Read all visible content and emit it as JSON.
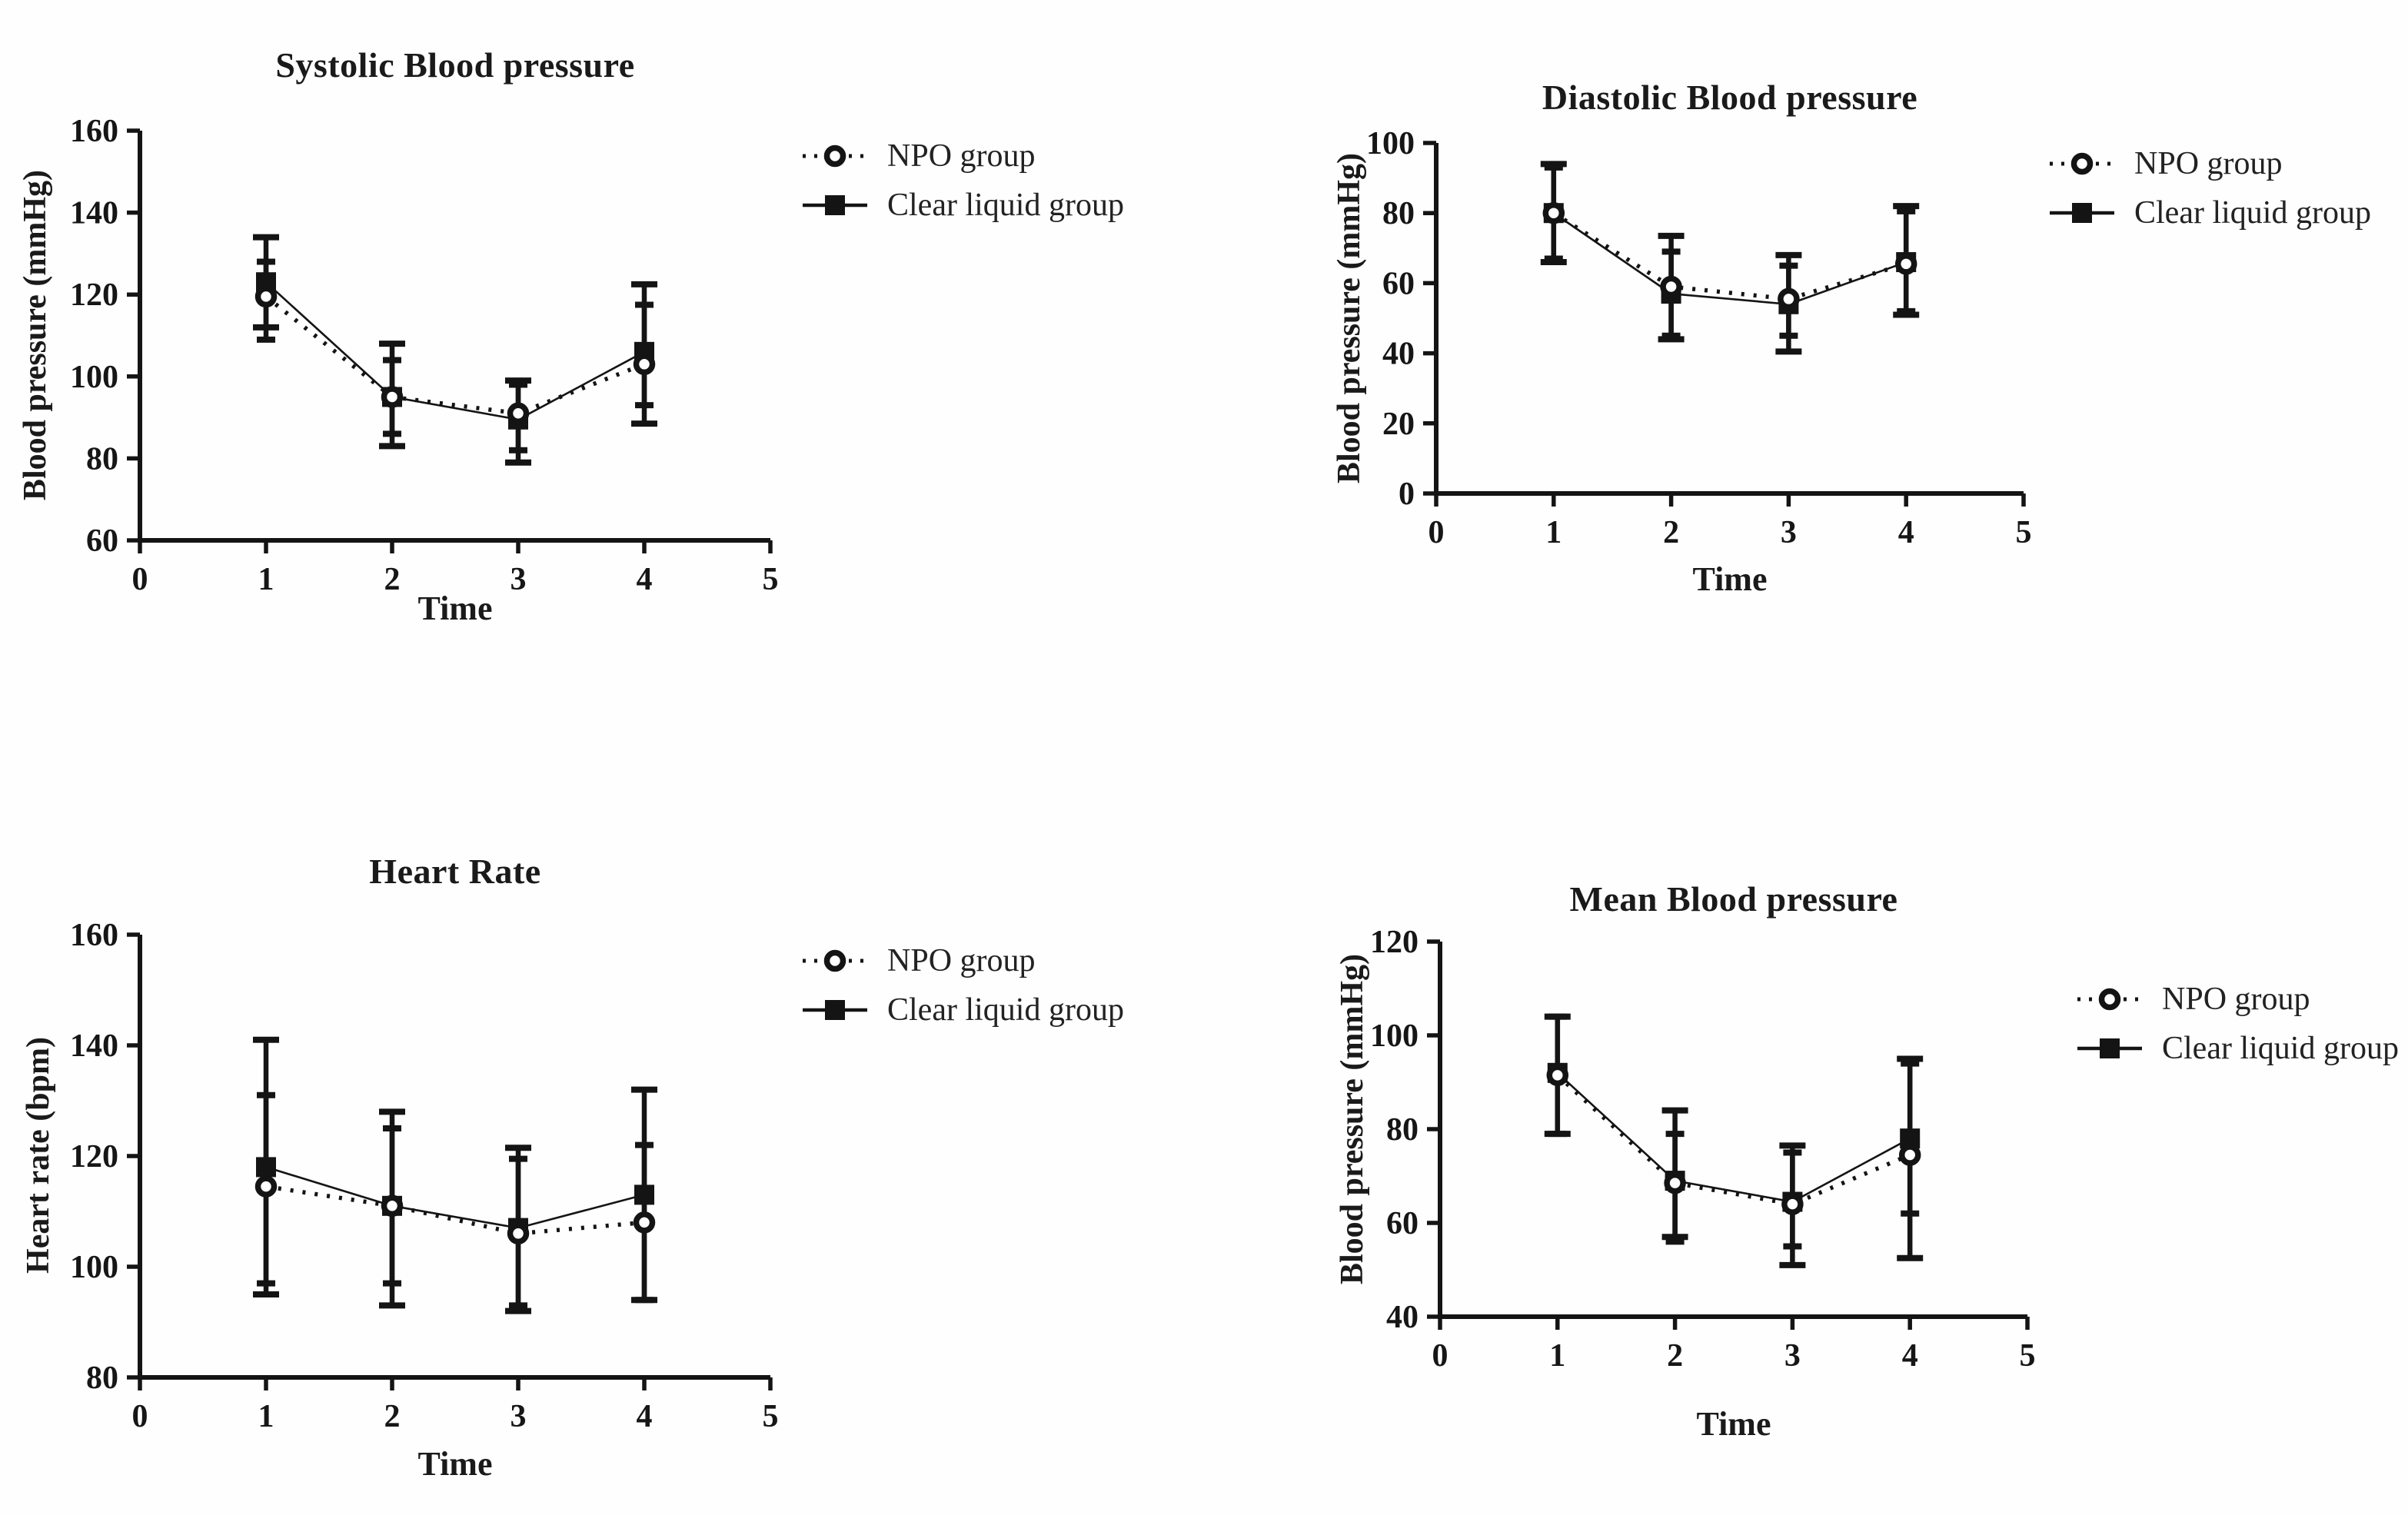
{
  "figure": {
    "background": "#fefefe",
    "ink_color": "#141414"
  },
  "chart_data": [
    {
      "type": "line",
      "title": "Systolic Blood pressure",
      "xlabel": "Time",
      "ylabel": "Blood pressure (mmHg)",
      "xlim": [
        0,
        5
      ],
      "xticks": [
        0,
        1,
        2,
        3,
        4,
        5
      ],
      "ylim": [
        60,
        160
      ],
      "yticks": [
        60,
        80,
        100,
        120,
        140,
        160
      ],
      "grid": false,
      "legend_position": "right",
      "x": [
        1,
        2,
        3,
        4
      ],
      "series": [
        {
          "name": "NPO group",
          "marker": "open-circle",
          "line": "dotted",
          "values": [
            119.5,
            95,
            91,
            103
          ],
          "err_low": [
            109,
            86,
            82,
            93
          ],
          "err_high": [
            128,
            104,
            98,
            117.5
          ]
        },
        {
          "name": "Clear liquid group",
          "marker": "filled-square",
          "line": "solid",
          "values": [
            123,
            95,
            89.5,
            106
          ],
          "err_low": [
            112,
            83,
            79,
            88.5
          ],
          "err_high": [
            134,
            108,
            99,
            122.5
          ]
        }
      ]
    },
    {
      "type": "line",
      "title": "Diastolic Blood pressure",
      "xlabel": "Time",
      "ylabel": "Blood pressure (mmHg)",
      "xlim": [
        0,
        5
      ],
      "xticks": [
        0,
        1,
        2,
        3,
        4,
        5
      ],
      "ylim": [
        0,
        100
      ],
      "yticks": [
        0,
        20,
        40,
        60,
        80,
        100
      ],
      "grid": false,
      "legend_position": "right",
      "x": [
        1,
        2,
        3,
        4
      ],
      "series": [
        {
          "name": "NPO group",
          "marker": "open-circle",
          "line": "dotted",
          "values": [
            80,
            59,
            55.5,
            65.5
          ],
          "err_low": [
            67,
            45,
            45,
            52
          ],
          "err_high": [
            93,
            69,
            65,
            80.5
          ]
        },
        {
          "name": "Clear liquid group",
          "marker": "filled-square",
          "line": "solid",
          "values": [
            80,
            57,
            54,
            66
          ],
          "err_low": [
            66,
            44,
            40.5,
            51
          ],
          "err_high": [
            94,
            73.5,
            68,
            82
          ]
        }
      ]
    },
    {
      "type": "line",
      "title": "Heart Rate",
      "xlabel": "Time",
      "ylabel": "Heart rate (bpm)",
      "xlim": [
        0,
        5
      ],
      "xticks": [
        0,
        1,
        2,
        3,
        4,
        5
      ],
      "ylim": [
        80,
        160
      ],
      "yticks": [
        80,
        100,
        120,
        140,
        160
      ],
      "grid": false,
      "legend_position": "right",
      "x": [
        1,
        2,
        3,
        4
      ],
      "series": [
        {
          "name": "NPO group",
          "marker": "open-circle",
          "line": "dotted",
          "values": [
            114.5,
            111,
            106,
            108
          ],
          "err_low": [
            97,
            97,
            93,
            94
          ],
          "err_high": [
            131,
            125,
            119.5,
            122
          ]
        },
        {
          "name": "Clear liquid group",
          "marker": "filled-square",
          "line": "solid",
          "values": [
            118,
            111,
            107,
            113
          ],
          "err_low": [
            95,
            93,
            92,
            94
          ],
          "err_high": [
            141,
            128,
            121.5,
            132
          ]
        }
      ]
    },
    {
      "type": "line",
      "title": "Mean Blood pressure",
      "xlabel": "Time",
      "ylabel": "Blood pressure (mmHg)",
      "xlim": [
        0,
        5
      ],
      "xticks": [
        0,
        1,
        2,
        3,
        4,
        5
      ],
      "ylim": [
        40,
        120
      ],
      "yticks": [
        40,
        60,
        80,
        100,
        120
      ],
      "grid": false,
      "legend_position": "right",
      "x": [
        1,
        2,
        3,
        4
      ],
      "series": [
        {
          "name": "NPO group",
          "marker": "open-circle",
          "line": "dotted",
          "values": [
            91.5,
            68.5,
            64,
            74.5
          ],
          "err_low": [
            79,
            56,
            55,
            62
          ],
          "err_high": [
            104,
            79,
            75,
            94
          ]
        },
        {
          "name": "Clear liquid group",
          "marker": "filled-square",
          "line": "solid",
          "values": [
            92,
            69,
            64.5,
            78
          ],
          "err_low": [
            79,
            57,
            51,
            52.5
          ],
          "err_high": [
            104,
            84,
            76.5,
            95
          ]
        }
      ]
    }
  ]
}
